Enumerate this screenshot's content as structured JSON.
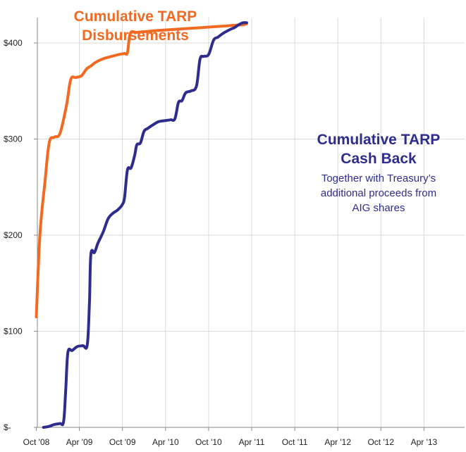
{
  "chart_data": {
    "type": "line",
    "x_tick_labels": [
      "Oct '08",
      "Apr '09",
      "Oct '09",
      "Apr '10",
      "Oct '10",
      "Apr '11",
      "Oct '11",
      "Apr '12",
      "Oct '12",
      "Apr '13"
    ],
    "y_tick_labels": [
      "$-",
      "$100",
      "$200",
      "$300",
      "$400"
    ],
    "ylim": [
      0,
      420
    ],
    "grid": true,
    "series": [
      {
        "name": "Cumulative TARP Disbursements",
        "color": "#F26A21",
        "points": [
          [
            0,
            115
          ],
          [
            0.5,
            200
          ],
          [
            1.2,
            255
          ],
          [
            1.8,
            296
          ],
          [
            2.5,
            302
          ],
          [
            3.3,
            306
          ],
          [
            4.2,
            335
          ],
          [
            4.8,
            362
          ],
          [
            5.5,
            364
          ],
          [
            6.3,
            366
          ],
          [
            7.0,
            373
          ],
          [
            7.6,
            376
          ],
          [
            8.3,
            380
          ],
          [
            9.5,
            384
          ],
          [
            10.5,
            386
          ],
          [
            11.5,
            388
          ],
          [
            12.3,
            389
          ],
          [
            12.7,
            390
          ],
          [
            13.1,
            410
          ],
          [
            14.0,
            411
          ],
          [
            15.5,
            412
          ],
          [
            17.0,
            413
          ],
          [
            19.0,
            414
          ],
          [
            21.0,
            415
          ],
          [
            23.0,
            416
          ],
          [
            25.0,
            417
          ],
          [
            27.0,
            418
          ],
          [
            28.8,
            419
          ],
          [
            29.3,
            420
          ]
        ]
      },
      {
        "name": "Cumulative TARP Cash Back",
        "color": "#2E2C8C",
        "points": [
          [
            1.0,
            0
          ],
          [
            1.8,
            1
          ],
          [
            2.5,
            3
          ],
          [
            3.3,
            4
          ],
          [
            3.8,
            6
          ],
          [
            4.1,
            40
          ],
          [
            4.4,
            78
          ],
          [
            5.0,
            80
          ],
          [
            5.7,
            84
          ],
          [
            6.5,
            85
          ],
          [
            7.1,
            86
          ],
          [
            7.4,
            130
          ],
          [
            7.6,
            180
          ],
          [
            8.1,
            182
          ],
          [
            8.6,
            192
          ],
          [
            9.3,
            203
          ],
          [
            10.0,
            217
          ],
          [
            10.7,
            223
          ],
          [
            11.3,
            226
          ],
          [
            12.0,
            232
          ],
          [
            12.3,
            240
          ],
          [
            12.7,
            268
          ],
          [
            13.2,
            270
          ],
          [
            13.7,
            283
          ],
          [
            14.0,
            294
          ],
          [
            14.5,
            296
          ],
          [
            15.0,
            308
          ],
          [
            15.5,
            311
          ],
          [
            16.3,
            315
          ],
          [
            17.0,
            318
          ],
          [
            17.7,
            319
          ],
          [
            18.7,
            320
          ],
          [
            19.3,
            321
          ],
          [
            19.8,
            338
          ],
          [
            20.3,
            340
          ],
          [
            20.8,
            348
          ],
          [
            21.5,
            350
          ],
          [
            22.3,
            355
          ],
          [
            22.8,
            383
          ],
          [
            23.3,
            386
          ],
          [
            24.0,
            388
          ],
          [
            24.7,
            403
          ],
          [
            25.3,
            406
          ],
          [
            26.0,
            410
          ],
          [
            27.0,
            414
          ],
          [
            27.6,
            416
          ],
          [
            28.2,
            419
          ],
          [
            28.8,
            421
          ],
          [
            29.3,
            421
          ]
        ]
      }
    ]
  },
  "annotations": {
    "orange_title_line1": "Cumulative TARP",
    "orange_title_line2": "Disbursements",
    "blue_title_line1": "Cumulative TARP",
    "blue_title_line2": "Cash Back",
    "blue_sub_line1": "Together with Treasury’s",
    "blue_sub_line2": "additional proceeds from",
    "blue_sub_line3": "AIG shares"
  },
  "colors": {
    "disbursements": "#F26A21",
    "cash_back": "#2E2C8C",
    "grid": "#d9d9d9"
  }
}
